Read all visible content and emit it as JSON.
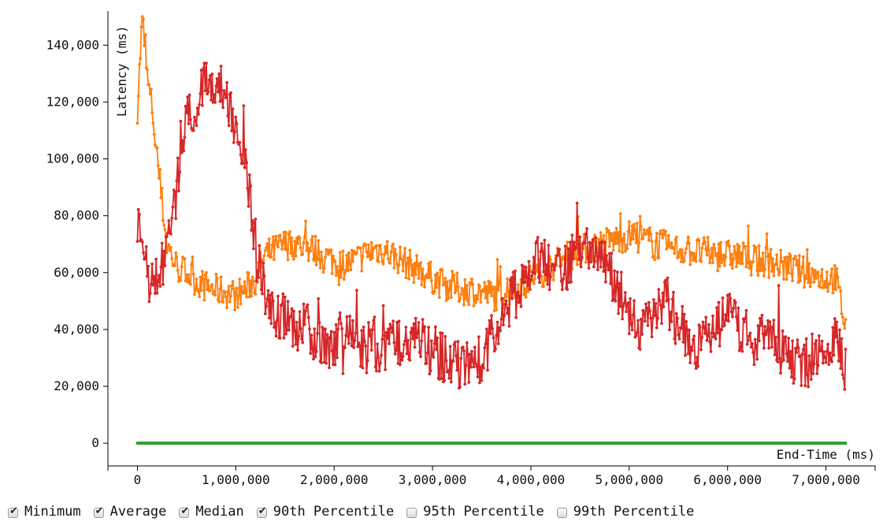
{
  "chart_data": {
    "type": "line",
    "title": "",
    "xlabel": "End-Time (ms)",
    "ylabel": "Latency (ms)",
    "xlim": [
      -300000,
      7500000
    ],
    "ylim": [
      -8000,
      152000
    ],
    "x_ticks": [
      0,
      1000000,
      2000000,
      3000000,
      4000000,
      5000000,
      6000000,
      7000000
    ],
    "x_tick_labels": [
      "0",
      "1,000,000",
      "2,000,000",
      "3,000,000",
      "4,000,000",
      "5,000,000",
      "6,000,000",
      "7,000,000"
    ],
    "y_ticks": [
      0,
      20000,
      40000,
      60000,
      80000,
      100000,
      120000,
      140000
    ],
    "y_tick_labels": [
      "0",
      "20,000",
      "40,000",
      "60,000",
      "80,000",
      "100,000",
      "120,000",
      "140,000"
    ],
    "grid": false,
    "series": [
      {
        "name": "Minimum",
        "color": "#2ca02c",
        "visible": true,
        "x": [
          0,
          7200000
        ],
        "y": [
          0,
          0
        ]
      },
      {
        "name": "Average",
        "color": "#ff7f0e",
        "visible": true,
        "x": [
          0,
          50000,
          100000,
          150000,
          200000,
          250000,
          300000,
          400000,
          500000,
          600000,
          700000,
          800000,
          900000,
          1000000,
          1100000,
          1200000,
          1300000,
          1400000,
          1500000,
          1600000,
          1700000,
          1800000,
          1900000,
          2000000,
          2100000,
          2200000,
          2300000,
          2400000,
          2500000,
          2600000,
          2700000,
          2800000,
          2900000,
          3000000,
          3100000,
          3200000,
          3300000,
          3400000,
          3500000,
          3600000,
          3700000,
          3800000,
          3900000,
          4000000,
          4100000,
          4200000,
          4300000,
          4400000,
          4500000,
          4600000,
          4700000,
          4800000,
          4900000,
          5000000,
          5100000,
          5200000,
          5300000,
          5400000,
          5500000,
          5600000,
          5700000,
          5800000,
          5900000,
          6000000,
          6100000,
          6200000,
          6300000,
          6400000,
          6500000,
          6600000,
          6700000,
          6800000,
          6900000,
          7000000,
          7100000,
          7200000
        ],
        "y": [
          118000,
          150000,
          128000,
          118000,
          100000,
          85000,
          70000,
          62000,
          60000,
          57000,
          55000,
          54000,
          53000,
          52000,
          54000,
          58000,
          66000,
          68000,
          70000,
          70000,
          69000,
          68000,
          66000,
          64000,
          63000,
          64000,
          66000,
          68000,
          68000,
          66000,
          64000,
          62000,
          60000,
          58000,
          56000,
          55000,
          54000,
          54000,
          53000,
          52000,
          52000,
          53000,
          55000,
          58000,
          60000,
          62000,
          64000,
          66000,
          68000,
          69000,
          70000,
          71000,
          72000,
          73000,
          72000,
          71000,
          70000,
          69000,
          68000,
          68000,
          67000,
          67000,
          66000,
          66000,
          66000,
          65000,
          64000,
          64000,
          63000,
          62000,
          61000,
          60000,
          59000,
          58000,
          58000,
          41000
        ]
      },
      {
        "name": "Median",
        "color": "#d62728",
        "visible": true,
        "x": [
          0,
          50000,
          100000,
          150000,
          200000,
          250000,
          300000,
          400000,
          500000,
          600000,
          700000,
          800000,
          900000,
          1000000,
          1100000,
          1200000,
          1300000,
          1400000,
          1500000,
          1600000,
          1700000,
          1800000,
          1900000,
          2000000,
          2100000,
          2200000,
          2300000,
          2400000,
          2500000,
          2600000,
          2700000,
          2800000,
          2900000,
          3000000,
          3100000,
          3200000,
          3300000,
          3400000,
          3500000,
          3600000,
          3700000,
          3800000,
          3900000,
          4000000,
          4100000,
          4200000,
          4300000,
          4400000,
          4500000,
          4600000,
          4700000,
          4800000,
          4900000,
          5000000,
          5100000,
          5200000,
          5300000,
          5400000,
          5500000,
          5600000,
          5700000,
          5800000,
          5900000,
          6000000,
          6100000,
          6200000,
          6300000,
          6400000,
          6500000,
          6600000,
          6700000,
          6800000,
          6900000,
          7000000,
          7100000,
          7200000
        ],
        "y": [
          80000,
          62000,
          60000,
          57000,
          58000,
          62000,
          68000,
          90000,
          112000,
          120000,
          126000,
          128000,
          122000,
          110000,
          100000,
          70000,
          52000,
          46000,
          44000,
          42000,
          40000,
          38000,
          36000,
          35000,
          36000,
          36000,
          34000,
          33000,
          33000,
          35000,
          37000,
          38000,
          35000,
          32000,
          30000,
          29000,
          28000,
          28000,
          30000,
          36000,
          44000,
          50000,
          56000,
          62000,
          64000,
          62000,
          60000,
          64000,
          68000,
          68000,
          65000,
          60000,
          52000,
          44000,
          40000,
          44000,
          50000,
          48000,
          42000,
          36000,
          34000,
          36000,
          42000,
          46000,
          42000,
          38000,
          36000,
          36000,
          34000,
          30000,
          28000,
          28000,
          32000,
          34000,
          36000,
          27000
        ]
      },
      {
        "name": "90th Percentile",
        "visible": true,
        "color": "#1f77b4",
        "x": [],
        "y": []
      },
      {
        "name": "95th Percentile",
        "visible": false,
        "x": [],
        "y": []
      },
      {
        "name": "99th Percentile",
        "visible": false,
        "x": [],
        "y": []
      }
    ]
  },
  "legend": {
    "items": [
      {
        "label": "Minimum",
        "checked": true
      },
      {
        "label": "Average",
        "checked": true
      },
      {
        "label": "Median",
        "checked": true
      },
      {
        "label": "90th Percentile",
        "checked": true
      },
      {
        "label": "95th Percentile",
        "checked": false
      },
      {
        "label": "99th Percentile",
        "checked": false
      }
    ]
  }
}
